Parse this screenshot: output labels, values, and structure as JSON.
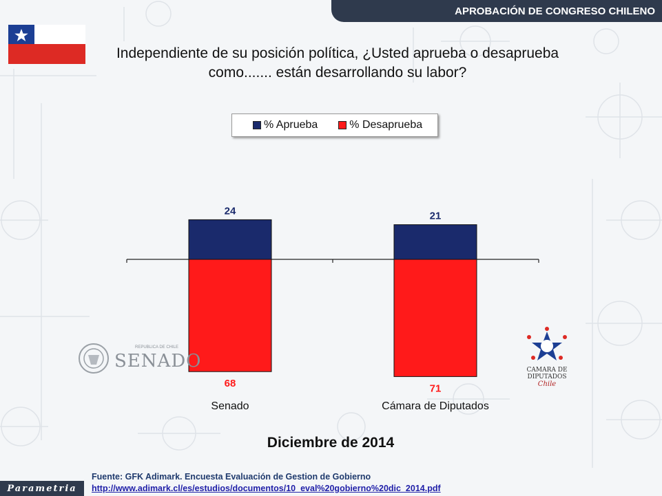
{
  "header": {
    "title": "APROBACIÓN DE CONGRESO CHILENO"
  },
  "question": {
    "line1": "Independiente de su posición política, ¿Usted aprueba o desaprueba",
    "line2": "como....... están desarrollando su labor?"
  },
  "colors": {
    "approve": "#1a2a6c",
    "disapprove": "#ff1a1a",
    "header": "#2f3a4d"
  },
  "chart_data": {
    "type": "bar",
    "categories": [
      "Senado",
      "Cámara de Diputados"
    ],
    "series": [
      {
        "name": "% Aprueba",
        "values": [
          24,
          21
        ]
      },
      {
        "name": "% Desaprueba",
        "values": [
          68,
          71
        ]
      }
    ],
    "legend_position": "top",
    "grid": false
  },
  "logos": {
    "senado": {
      "small": "REPUBLICA DE CHILE",
      "big": "SENADO"
    },
    "camara": {
      "line1": "CAMARA DE DIPUTADOS",
      "line2": "Chile"
    }
  },
  "date": "Diciembre de 2014",
  "source": {
    "text": "Fuente: GFK Adimark. Encuesta Evaluación de Gestion de Gobierno",
    "url": "http://www.adimark.cl/es/estudios/documentos/10_eval%20gobierno%20dic_2014.pdf"
  },
  "brand": "Parametria"
}
